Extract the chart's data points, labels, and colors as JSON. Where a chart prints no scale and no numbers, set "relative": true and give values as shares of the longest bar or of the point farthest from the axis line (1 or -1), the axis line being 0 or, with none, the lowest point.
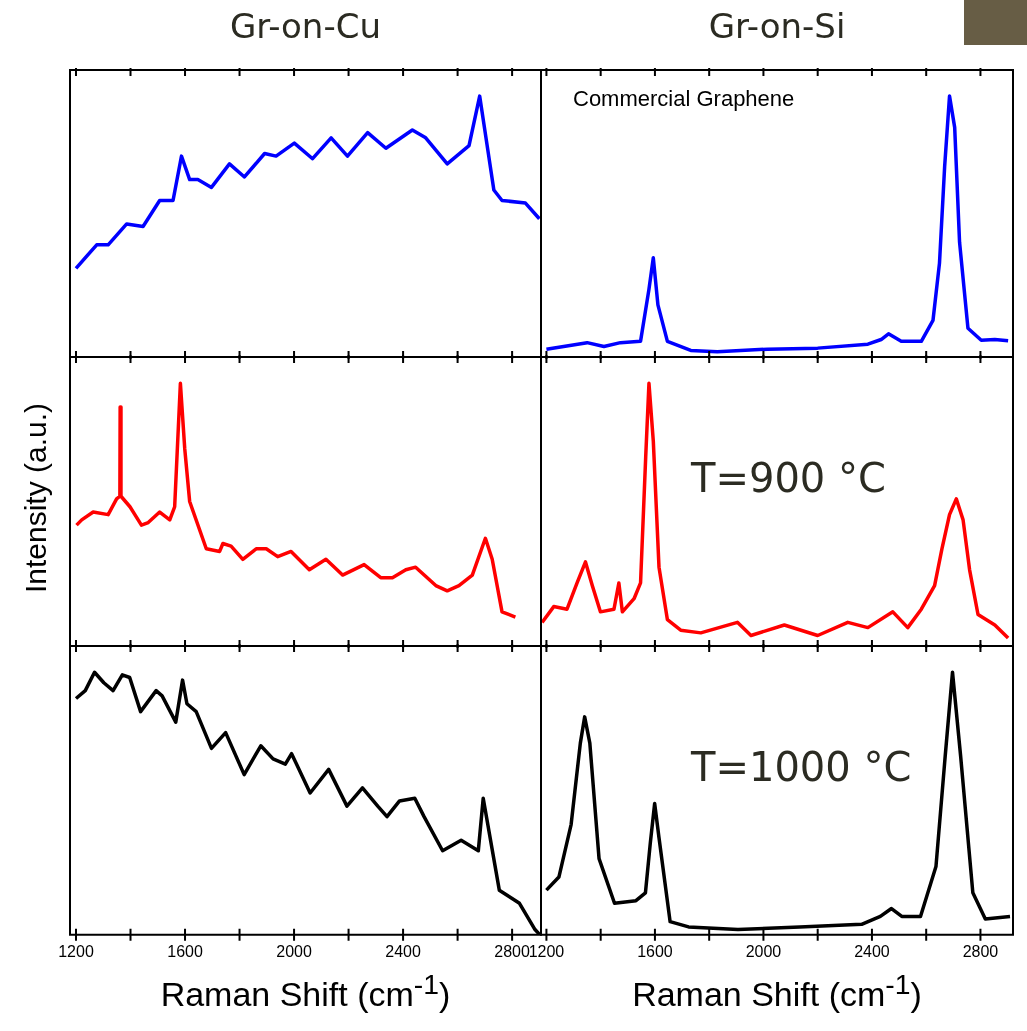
{
  "chart_data": [
    {
      "type": "line",
      "title": "Gr-on-Cu",
      "relative": true,
      "tick_labels": false,
      "color": "#0000ff",
      "xlim": [
        1178,
        2906
      ],
      "xticks": [
        1200,
        {
          "value": 1400,
          "label": null
        },
        1600,
        {
          "value": 1800,
          "label": null
        },
        2000,
        {
          "value": 2200,
          "label": null
        },
        2400,
        {
          "value": 2600,
          "label": null
        },
        2800
      ],
      "x": [
        1200,
        1276,
        1318,
        1386,
        1446,
        1507,
        1556,
        1587,
        1617,
        1647,
        1697,
        1763,
        1818,
        1892,
        1934,
        2001,
        2068,
        2136,
        2196,
        2270,
        2337,
        2434,
        2483,
        2562,
        2642,
        2681,
        2733,
        2763,
        2849,
        2900
      ],
      "values": [
        0.34,
        0.43,
        0.43,
        0.51,
        0.5,
        0.6,
        0.6,
        0.77,
        0.68,
        0.68,
        0.65,
        0.74,
        0.69,
        0.78,
        0.77,
        0.82,
        0.76,
        0.84,
        0.77,
        0.86,
        0.8,
        0.87,
        0.84,
        0.74,
        0.81,
        1,
        0.64,
        0.6,
        0.59,
        0.53
      ]
    },
    {
      "type": "line",
      "title": "Gr-on-Si",
      "relative": true,
      "tick_labels": false,
      "color": "#0000ff",
      "xlim": [
        1180,
        2920
      ],
      "xticks": [
        1200,
        {
          "value": 1400,
          "label": null
        },
        1600,
        {
          "value": 1800,
          "label": null
        },
        2000,
        {
          "value": 2200,
          "label": null
        },
        2400,
        {
          "value": 2600,
          "label": null
        },
        2800
      ],
      "annotations": [
        "Commercial Graphene"
      ],
      "x": [
        1200,
        1350,
        1412,
        1473,
        1547,
        1578,
        1594,
        1611,
        1646,
        1732,
        1830,
        2015,
        2200,
        2385,
        2434,
        2461,
        2508,
        2582,
        2625,
        2649,
        2668,
        2686,
        2705,
        2723,
        2754,
        2803,
        2853,
        2902
      ],
      "values": [
        0.03,
        0.055,
        0.04,
        0.055,
        0.06,
        0.26,
        0.38,
        0.2,
        0.06,
        0.025,
        0.02,
        0.03,
        0.034,
        0.049,
        0.067,
        0.089,
        0.06,
        0.06,
        0.14,
        0.36,
        0.73,
        1,
        0.88,
        0.44,
        0.11,
        0.064,
        0.067,
        0.062
      ]
    },
    {
      "type": "line",
      "ylabel": "Intensity (a.u.)",
      "relative": true,
      "tick_labels": false,
      "color": "#ff0000",
      "xlim": [
        1178,
        2906
      ],
      "xticks": [
        1200,
        {
          "value": 1400,
          "label": null
        },
        1600,
        {
          "value": 1800,
          "label": null
        },
        2000,
        {
          "value": 2200,
          "label": null
        },
        2400,
        {
          "value": 2600,
          "label": null
        },
        2800
      ],
      "x": [
        1202,
        1221,
        1263,
        1318,
        1349,
        1361,
        1362,
        1365,
        1398,
        1440,
        1465,
        1507,
        1544,
        1562,
        1583,
        1599,
        1617,
        1678,
        1727,
        1739,
        1769,
        1812,
        1861,
        1898,
        1940,
        1989,
        2056,
        2117,
        2178,
        2257,
        2318,
        2361,
        2410,
        2446,
        2520,
        2562,
        2605,
        2654,
        2702,
        2727,
        2763,
        2812
      ],
      "values": [
        0.46,
        0.48,
        0.51,
        0.5,
        0.56,
        0.57,
        0.91,
        0.57,
        0.53,
        0.46,
        0.47,
        0.51,
        0.48,
        0.53,
        1,
        0.75,
        0.55,
        0.37,
        0.36,
        0.39,
        0.38,
        0.33,
        0.37,
        0.37,
        0.34,
        0.36,
        0.29,
        0.33,
        0.27,
        0.31,
        0.26,
        0.26,
        0.29,
        0.3,
        0.23,
        0.21,
        0.23,
        0.27,
        0.41,
        0.33,
        0.13,
        0.11
      ]
    },
    {
      "type": "line",
      "relative": true,
      "tick_labels": false,
      "color": "#ff0000",
      "xlim": [
        1180,
        2920
      ],
      "xticks": [
        1200,
        {
          "value": 1400,
          "label": null
        },
        1600,
        {
          "value": 1800,
          "label": null
        },
        2000,
        {
          "value": 2200,
          "label": null
        },
        2400,
        {
          "value": 2600,
          "label": null
        },
        2800
      ],
      "annotations": [
        "T=900 °C"
      ],
      "x": [
        1184,
        1227,
        1276,
        1313,
        1344,
        1369,
        1399,
        1449,
        1467,
        1480,
        1523,
        1547,
        1566,
        1578,
        1594,
        1615,
        1646,
        1695,
        1769,
        1904,
        1954,
        2077,
        2200,
        2311,
        2385,
        2477,
        2532,
        2582,
        2631,
        2658,
        2686,
        2711,
        2736,
        2760,
        2791,
        2853,
        2902
      ],
      "values": [
        0.09,
        0.15,
        0.14,
        0.24,
        0.32,
        0.23,
        0.13,
        0.14,
        0.24,
        0.13,
        0.18,
        0.24,
        0.72,
        1,
        0.78,
        0.3,
        0.1,
        0.06,
        0.05,
        0.09,
        0.04,
        0.08,
        0.04,
        0.09,
        0.07,
        0.13,
        0.07,
        0.14,
        0.23,
        0.37,
        0.5,
        0.56,
        0.48,
        0.29,
        0.12,
        0.08,
        0.03
      ]
    },
    {
      "type": "line",
      "xlabel": "Raman Shift (cm$^{-1}$)",
      "relative": true,
      "tick_labels": "x",
      "color": "#000000",
      "xlim": [
        1178,
        2906
      ],
      "xticks": [
        1200,
        {
          "value": 1400,
          "label": null
        },
        1600,
        {
          "value": 1800,
          "label": null
        },
        2000,
        {
          "value": 2200,
          "label": null
        },
        2400,
        {
          "value": 2600,
          "label": null
        },
        2800
      ],
      "x": [
        1200,
        1234,
        1268,
        1302,
        1336,
        1370,
        1397,
        1437,
        1494,
        1516,
        1566,
        1591,
        1607,
        1641,
        1697,
        1749,
        1817,
        1878,
        1923,
        1968,
        1991,
        2059,
        2127,
        2194,
        2251,
        2307,
        2341,
        2387,
        2443,
        2477,
        2545,
        2613,
        2676,
        2694,
        2726,
        2753,
        2827,
        2884,
        2902
      ],
      "values": [
        0.9,
        0.93,
        1,
        0.96,
        0.93,
        0.99,
        0.98,
        0.85,
        0.93,
        0.91,
        0.81,
        0.97,
        0.88,
        0.85,
        0.71,
        0.77,
        0.61,
        0.72,
        0.67,
        0.65,
        0.69,
        0.54,
        0.63,
        0.49,
        0.56,
        0.49,
        0.45,
        0.51,
        0.52,
        0.45,
        0.32,
        0.36,
        0.32,
        0.52,
        0.33,
        0.17,
        0.12,
        0.02,
        0
      ]
    },
    {
      "type": "line",
      "xlabel": "Raman Shift (cm$^{-1}$)",
      "relative": true,
      "tick_labels": "x",
      "color": "#000000",
      "xlim": [
        1180,
        2920
      ],
      "xticks": [
        1200,
        {
          "value": 1400,
          "label": null
        },
        1600,
        {
          "value": 1800,
          "label": null
        },
        2000,
        {
          "value": 2200,
          "label": null
        },
        2400,
        {
          "value": 2600,
          "label": null
        },
        2800
      ],
      "annotations": [
        "T=1000 °C"
      ],
      "x": [
        1200,
        1246,
        1291,
        1325,
        1341,
        1360,
        1394,
        1451,
        1530,
        1565,
        1583,
        1599,
        1615,
        1656,
        1724,
        1906,
        2134,
        2362,
        2431,
        2472,
        2510,
        2579,
        2636,
        2670,
        2697,
        2727,
        2772,
        2818,
        2909
      ],
      "values": [
        0.17,
        0.22,
        0.42,
        0.73,
        0.83,
        0.73,
        0.29,
        0.12,
        0.13,
        0.16,
        0.35,
        0.5,
        0.37,
        0.05,
        0.03,
        0.02,
        0.03,
        0.04,
        0.07,
        0.1,
        0.07,
        0.07,
        0.26,
        0.68,
        1,
        0.68,
        0.16,
        0.06,
        0.07
      ]
    }
  ]
}
